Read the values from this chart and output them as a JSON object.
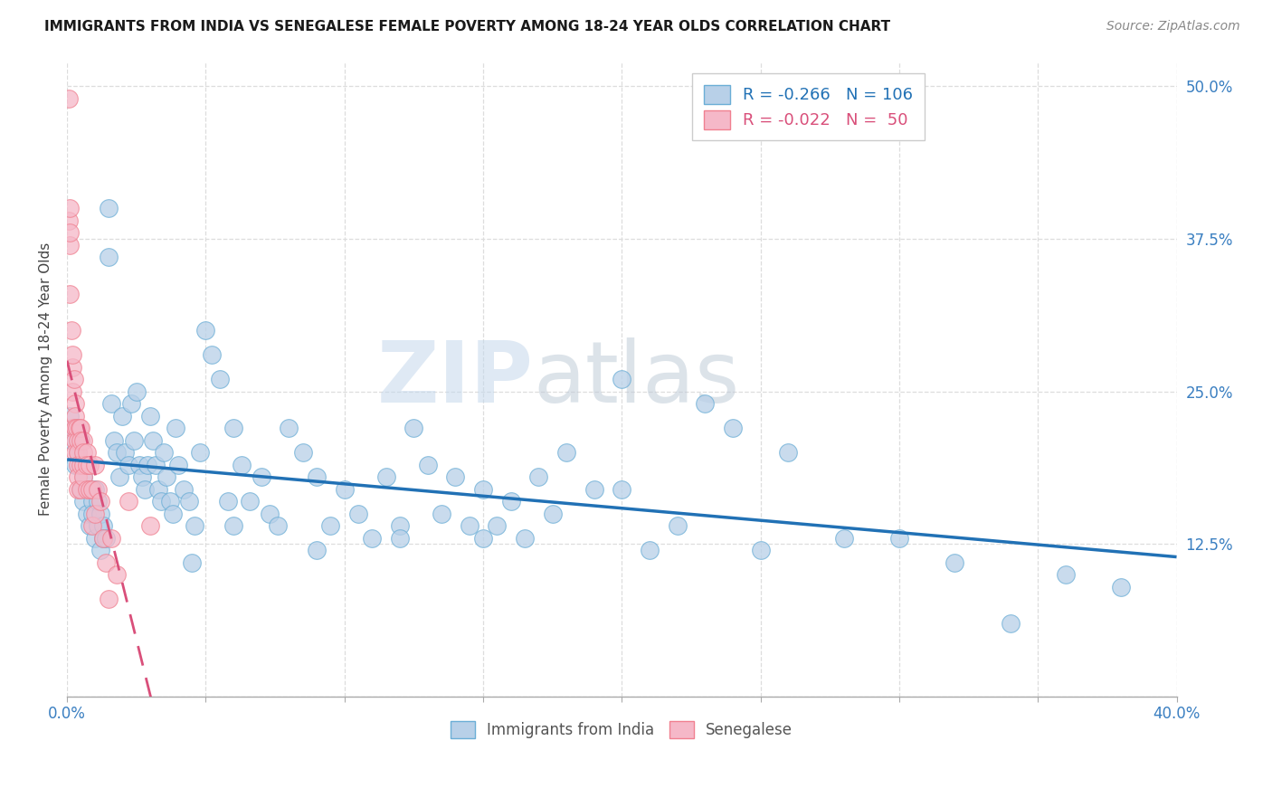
{
  "title": "IMMIGRANTS FROM INDIA VS SENEGALESE FEMALE POVERTY AMONG 18-24 YEAR OLDS CORRELATION CHART",
  "source": "Source: ZipAtlas.com",
  "ylabel": "Female Poverty Among 18-24 Year Olds",
  "xlim": [
    0.0,
    0.4
  ],
  "ylim": [
    0.0,
    0.52
  ],
  "xticks": [
    0.0,
    0.05,
    0.1,
    0.15,
    0.2,
    0.25,
    0.3,
    0.35,
    0.4
  ],
  "xticklabels": [
    "0.0%",
    "",
    "",
    "",
    "",
    "",
    "",
    "",
    "40.0%"
  ],
  "yticks_right": [
    0.0,
    0.125,
    0.25,
    0.375,
    0.5
  ],
  "yticks_right_labels": [
    "",
    "12.5%",
    "25.0%",
    "37.5%",
    "50.0%"
  ],
  "india_color": "#b8d0e8",
  "senegal_color": "#f5b8c8",
  "india_edge_color": "#6baed6",
  "senegal_edge_color": "#f08090",
  "india_line_color": "#2171b5",
  "senegal_line_color": "#d94f7a",
  "watermark_zip": "ZIP",
  "watermark_atlas": "atlas",
  "legend_india_text": "R = -0.266   N = 106",
  "legend_senegal_text": "R = -0.022   N =  50",
  "india_legend_label": "Immigrants from India",
  "senegal_legend_label": "Senegalese",
  "india_scatter_x": [
    0.001,
    0.002,
    0.003,
    0.003,
    0.004,
    0.005,
    0.005,
    0.006,
    0.006,
    0.007,
    0.007,
    0.008,
    0.008,
    0.009,
    0.009,
    0.01,
    0.01,
    0.011,
    0.011,
    0.012,
    0.012,
    0.013,
    0.013,
    0.014,
    0.015,
    0.015,
    0.016,
    0.017,
    0.018,
    0.019,
    0.02,
    0.021,
    0.022,
    0.023,
    0.024,
    0.025,
    0.026,
    0.027,
    0.028,
    0.029,
    0.03,
    0.031,
    0.032,
    0.033,
    0.034,
    0.035,
    0.036,
    0.037,
    0.038,
    0.039,
    0.04,
    0.042,
    0.044,
    0.046,
    0.048,
    0.05,
    0.052,
    0.055,
    0.058,
    0.06,
    0.063,
    0.066,
    0.07,
    0.073,
    0.076,
    0.08,
    0.085,
    0.09,
    0.095,
    0.1,
    0.105,
    0.11,
    0.115,
    0.12,
    0.125,
    0.13,
    0.135,
    0.14,
    0.145,
    0.15,
    0.155,
    0.16,
    0.165,
    0.17,
    0.175,
    0.18,
    0.19,
    0.2,
    0.21,
    0.22,
    0.23,
    0.24,
    0.25,
    0.26,
    0.28,
    0.3,
    0.32,
    0.34,
    0.36,
    0.38,
    0.2,
    0.15,
    0.12,
    0.09,
    0.06,
    0.045
  ],
  "india_scatter_y": [
    0.23,
    0.21,
    0.22,
    0.19,
    0.2,
    0.21,
    0.17,
    0.18,
    0.16,
    0.19,
    0.15,
    0.17,
    0.14,
    0.16,
    0.15,
    0.17,
    0.13,
    0.16,
    0.14,
    0.15,
    0.12,
    0.14,
    0.13,
    0.13,
    0.4,
    0.36,
    0.24,
    0.21,
    0.2,
    0.18,
    0.23,
    0.2,
    0.19,
    0.24,
    0.21,
    0.25,
    0.19,
    0.18,
    0.17,
    0.19,
    0.23,
    0.21,
    0.19,
    0.17,
    0.16,
    0.2,
    0.18,
    0.16,
    0.15,
    0.22,
    0.19,
    0.17,
    0.16,
    0.14,
    0.2,
    0.3,
    0.28,
    0.26,
    0.16,
    0.22,
    0.19,
    0.16,
    0.18,
    0.15,
    0.14,
    0.22,
    0.2,
    0.18,
    0.14,
    0.17,
    0.15,
    0.13,
    0.18,
    0.14,
    0.22,
    0.19,
    0.15,
    0.18,
    0.14,
    0.17,
    0.14,
    0.16,
    0.13,
    0.18,
    0.15,
    0.2,
    0.17,
    0.17,
    0.12,
    0.14,
    0.24,
    0.22,
    0.12,
    0.2,
    0.13,
    0.13,
    0.11,
    0.06,
    0.1,
    0.09,
    0.26,
    0.13,
    0.13,
    0.12,
    0.14,
    0.11
  ],
  "senegal_scatter_x": [
    0.0005,
    0.0005,
    0.0008,
    0.001,
    0.001,
    0.001,
    0.0015,
    0.002,
    0.002,
    0.002,
    0.002,
    0.0025,
    0.003,
    0.003,
    0.003,
    0.003,
    0.003,
    0.0035,
    0.004,
    0.004,
    0.004,
    0.004,
    0.004,
    0.0045,
    0.005,
    0.005,
    0.005,
    0.005,
    0.006,
    0.006,
    0.006,
    0.006,
    0.007,
    0.007,
    0.007,
    0.008,
    0.008,
    0.009,
    0.009,
    0.01,
    0.01,
    0.011,
    0.012,
    0.013,
    0.014,
    0.015,
    0.016,
    0.018,
    0.022,
    0.03
  ],
  "senegal_scatter_y": [
    0.49,
    0.39,
    0.4,
    0.37,
    0.33,
    0.38,
    0.3,
    0.27,
    0.25,
    0.28,
    0.22,
    0.26,
    0.24,
    0.23,
    0.22,
    0.21,
    0.2,
    0.22,
    0.21,
    0.2,
    0.19,
    0.18,
    0.17,
    0.22,
    0.22,
    0.21,
    0.19,
    0.17,
    0.21,
    0.2,
    0.19,
    0.18,
    0.2,
    0.19,
    0.17,
    0.19,
    0.17,
    0.17,
    0.14,
    0.19,
    0.15,
    0.17,
    0.16,
    0.13,
    0.11,
    0.08,
    0.13,
    0.1,
    0.16,
    0.14
  ]
}
